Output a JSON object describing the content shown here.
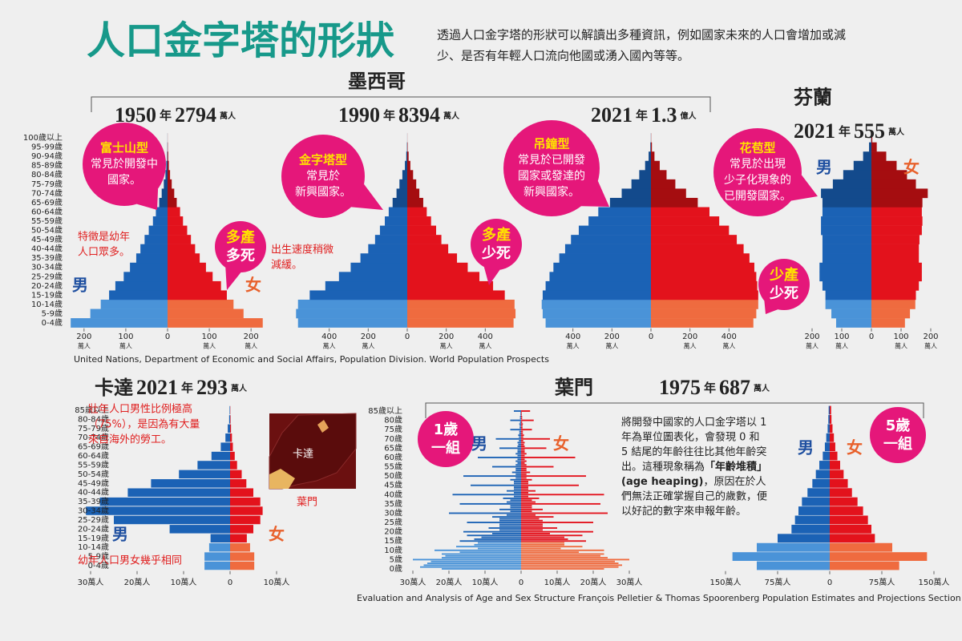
{
  "header": {
    "title": "人口金字塔的形狀",
    "intro": [
      "透過人口金字塔的形狀可以解讀出多種資訊，例如國家未來的人口會增加或減",
      "少、是否有年輕人口流向他國或湧入國內等等。"
    ]
  },
  "groups": [
    {
      "name": "墨西哥"
    },
    {
      "name": "葉門",
      "year": "1975",
      "year_unit": "年",
      "population": 687,
      "population_unit": "萬人"
    }
  ],
  "sources": [
    "United Nations, Department of Economic and Social Affairs, Population Division. World Population Prospects",
    "Evaluation and Analysis of Age and Sex Structure François Pelletier & Thomas Spoorenberg  Population Estimates and Projections Section"
  ],
  "chart_data": [
    {
      "type": "pyramid",
      "year": "1950",
      "year_unit": "年",
      "population": 2794,
      "population_unit": "萬人",
      "categories": [
        "0-4歲",
        "5-9歲",
        "10-14歲",
        "15-19歲",
        "20-24歲",
        "25-29歲",
        "30-34歲",
        "35-39歲",
        "40-44歲",
        "45-49歲",
        "50-54歲",
        "55-59歲",
        "60-64歲",
        "65-69歲",
        "70-74歲",
        "75-79歲",
        "80-84歲",
        "85-89歲",
        "90-94歲",
        "95-99歲",
        "100歲以上"
      ],
      "young_groups": 3,
      "old_from": 13,
      "xlim": [
        -240,
        240
      ],
      "xticks": [
        {
          "value": -200,
          "label": "200"
        },
        {
          "value": -100,
          "label": "100"
        },
        0,
        100,
        200
      ],
      "xunit": "萬人",
      "bubble": {
        "title": "富士山型",
        "lines": [
          "常見於開發中",
          "國家。"
        ]
      },
      "note": [
        "特徵是幼年",
        "人口眾多。"
      ],
      "tag": [
        "多產",
        "多死"
      ],
      "series": [
        {
          "name": "男",
          "side": "left",
          "color": "#1b62b5",
          "young_color": "#4a93d8",
          "old_color": "#134a8c",
          "values": [
            232,
            185,
            160,
            140,
            125,
            105,
            90,
            75,
            65,
            55,
            45,
            35,
            28,
            20,
            14,
            9,
            5,
            3,
            1,
            0.5,
            0.2
          ]
        },
        {
          "name": "女",
          "side": "right",
          "color": "#e3121c",
          "young_color": "#ef6b3f",
          "old_color": "#a50d10",
          "values": [
            228,
            182,
            158,
            142,
            128,
            108,
            92,
            77,
            66,
            56,
            47,
            37,
            30,
            22,
            16,
            10,
            6,
            3,
            1.5,
            0.6,
            0.2
          ]
        }
      ]
    },
    {
      "type": "pyramid",
      "year": "1990",
      "year_unit": "年",
      "population": 8394,
      "population_unit": "萬人",
      "young_groups": 3,
      "old_from": 13,
      "xlim": [
        -600,
        600
      ],
      "xticks": [
        {
          "value": -400,
          "label": "400"
        },
        {
          "value": -200,
          "label": "200"
        },
        0,
        200,
        400
      ],
      "xunit": "萬人",
      "bubble": {
        "title": "金字塔型",
        "lines": [
          "常見於",
          "新興國家。"
        ]
      },
      "note": [
        "出生速度稍微",
        "減緩。"
      ],
      "tag": [
        "多產",
        "少死"
      ],
      "series": [
        {
          "side": "left",
          "color": "#1b62b5",
          "young_color": "#4a93d8",
          "old_color": "#134a8c",
          "values": [
            560,
            570,
            560,
            500,
            420,
            350,
            290,
            240,
            200,
            165,
            140,
            115,
            95,
            75,
            55,
            40,
            25,
            12,
            5,
            1.5,
            0.3
          ]
        },
        {
          "side": "right",
          "color": "#e3121c",
          "young_color": "#ef6b3f",
          "old_color": "#a50d10",
          "values": [
            545,
            555,
            550,
            500,
            440,
            370,
            310,
            255,
            210,
            175,
            148,
            122,
            100,
            82,
            62,
            46,
            30,
            16,
            7,
            2,
            0.5
          ]
        }
      ]
    },
    {
      "type": "pyramid",
      "year": "2021",
      "year_unit": "年",
      "population": 1.3,
      "population_unit": "億人",
      "young_groups": 3,
      "old_from": 13,
      "xlim": [
        -600,
        600
      ],
      "xticks": [
        {
          "value": -400,
          "label": "400"
        },
        {
          "value": -200,
          "label": "200"
        },
        0,
        200,
        400
      ],
      "xunit": "萬人",
      "bubble": {
        "title": "吊鐘型",
        "lines": [
          "常見於已開發",
          "國家或發達的",
          "新興國家。"
        ]
      },
      "tag": [
        "少產",
        "少死"
      ],
      "series": [
        {
          "side": "left",
          "color": "#1b62b5",
          "young_color": "#4a93d8",
          "old_color": "#134a8c",
          "values": [
            540,
            555,
            560,
            555,
            540,
            520,
            500,
            470,
            440,
            410,
            370,
            320,
            270,
            210,
            150,
            100,
            60,
            30,
            12,
            3,
            0.6
          ]
        },
        {
          "side": "right",
          "color": "#e3121c",
          "young_color": "#ef6b3f",
          "old_color": "#a50d10",
          "values": [
            525,
            540,
            550,
            550,
            545,
            540,
            530,
            505,
            475,
            440,
            400,
            350,
            300,
            240,
            180,
            125,
            80,
            45,
            18,
            5,
            1
          ]
        }
      ]
    },
    {
      "type": "pyramid",
      "country": "芬蘭",
      "year": "2021",
      "year_unit": "年",
      "population": 555,
      "population_unit": "萬人",
      "young_groups": 3,
      "old_from": 13,
      "xlim": [
        -200,
        200
      ],
      "xticks": [
        {
          "value": -200,
          "label": "200"
        },
        {
          "value": -100,
          "label": "100"
        },
        0,
        100,
        200
      ],
      "xunit": "萬人",
      "bubble": {
        "title": "花苞型",
        "lines": [
          "常見於出現",
          "少子化現象的",
          "已開發國家。"
        ]
      },
      "series": [
        {
          "name": "男",
          "side": "left",
          "color": "#1b62b5",
          "young_color": "#4a93d8",
          "old_color": "#134a8c",
          "values": [
            119,
            135,
            155,
            155,
            165,
            175,
            175,
            165,
            165,
            165,
            170,
            170,
            165,
            165,
            170,
            130,
            95,
            60,
            28,
            8,
            1
          ]
        },
        {
          "name": "女",
          "side": "right",
          "color": "#e3121c",
          "young_color": "#ef6b3f",
          "old_color": "#a50d10",
          "values": [
            113,
            130,
            148,
            150,
            160,
            170,
            170,
            160,
            160,
            162,
            170,
            172,
            170,
            172,
            190,
            150,
            120,
            85,
            50,
            18,
            3
          ]
        }
      ]
    },
    {
      "type": "pyramid",
      "country": "卡達",
      "year": "2021",
      "year_unit": "年",
      "population": 293,
      "population_unit": "萬人",
      "categories": [
        "0-4歲",
        "5-9歲",
        "10-14歲",
        "15-19歲",
        "20-24歲",
        "25-29歲",
        "30-34歲",
        "35-39歲",
        "40-44歲",
        "45-49歲",
        "50-54歲",
        "55-59歲",
        "60-64歲",
        "65-69歲",
        "70-74歲",
        "75-79歲",
        "80-84歲",
        "85歲以上"
      ],
      "young_groups": 3,
      "xlim": [
        -35,
        15
      ],
      "xticks": [
        {
          "value": -30,
          "label": "30萬人"
        },
        {
          "value": -20,
          "label": "20萬人"
        },
        {
          "value": -10,
          "label": "10萬人"
        },
        0,
        {
          "value": 10,
          "label": "10萬人"
        }
      ],
      "note": [
        "壯年人口男性比例極高",
        "（75%），是因為有大量",
        "來自海外的勞工。"
      ],
      "note2": "幼年人口男女幾乎相同",
      "map_labels": [
        "卡達",
        "葉門"
      ],
      "series": [
        {
          "name": "男",
          "side": "left",
          "color": "#1b62b5",
          "young_color": "#4a93d8",
          "values": [
            5.5,
            5.5,
            4.5,
            4.2,
            13,
            25,
            31,
            28,
            22,
            17,
            11,
            7,
            4,
            2,
            1,
            0.5,
            0.2,
            0.1
          ]
        },
        {
          "name": "女",
          "side": "right",
          "color": "#e3121c",
          "young_color": "#ef6b3f",
          "values": [
            5.2,
            5.2,
            4.3,
            3.6,
            5,
            6.5,
            7,
            6.5,
            5,
            3.5,
            2.5,
            1.5,
            1,
            0.6,
            0.4,
            0.2,
            0.1,
            0.05
          ]
        }
      ]
    },
    {
      "type": "pyramid",
      "categories": [
        "0歲",
        null,
        null,
        null,
        null,
        "5歲",
        null,
        null,
        null,
        null,
        "10歲",
        null,
        null,
        null,
        null,
        "15歲",
        null,
        null,
        null,
        null,
        "20歲",
        null,
        null,
        null,
        null,
        "25歲",
        null,
        null,
        null,
        null,
        "30歲",
        null,
        null,
        null,
        null,
        "35歲",
        null,
        null,
        null,
        null,
        "40歲",
        null,
        null,
        null,
        null,
        "45歲",
        null,
        null,
        null,
        null,
        "50歲",
        null,
        null,
        null,
        null,
        "55歲",
        null,
        null,
        null,
        null,
        "60歲",
        null,
        null,
        null,
        null,
        "65歲",
        null,
        null,
        null,
        null,
        "70歲",
        null,
        null,
        null,
        null,
        "75歲",
        null,
        null,
        null,
        null,
        "80歲",
        null,
        null,
        null,
        null,
        "85歲以上"
      ],
      "young_groups": 15,
      "xlim": [
        -30,
        30
      ],
      "xticks": [
        {
          "value": -30,
          "label": "30萬人"
        },
        {
          "value": -20,
          "label": "20萬人"
        },
        {
          "value": -10,
          "label": "10萬人"
        },
        0,
        {
          "value": 10,
          "label": "10萬人"
        },
        {
          "value": 20,
          "label": "20萬人"
        },
        {
          "value": 30,
          "label": "30萬人"
        }
      ],
      "tag": [
        "1歲",
        "一組"
      ],
      "note": [
        [
          "將開發中國家的人口金字塔以 1"
        ],
        [
          "年為單位圖表化，會發現 0 和"
        ],
        [
          "5 結尾的年齡往往比其他年齡突"
        ],
        [
          "出。這種現象稱為",
          "「年齡堆積」"
        ],
        [
          "",
          "(age heaping)",
          "，原因在於人"
        ],
        [
          "們無法正確掌握自己的歲數，便"
        ],
        [
          "以好記的數字來申報年齡。"
        ]
      ],
      "series": [
        {
          "name": "男",
          "side": "left",
          "color": "#1b62b5",
          "young_color": "#4a93d8",
          "values": [
            22,
            28,
            27,
            26,
            25,
            30,
            22,
            21,
            22,
            17,
            24,
            12,
            18,
            13,
            12,
            17,
            13,
            11,
            15,
            8,
            16,
            6,
            9,
            6,
            6,
            15,
            6,
            6,
            8,
            4,
            20,
            3,
            6,
            3,
            3,
            17,
            4,
            3,
            5,
            2,
            19,
            2,
            4,
            2,
            2,
            14,
            2,
            2,
            3,
            1.5,
            16,
            1.5,
            2.5,
            1.5,
            1.5,
            8,
            1.5,
            1,
            1.5,
            1,
            12,
            1,
            1.5,
            1,
            1,
            6,
            1,
            0.8,
            1,
            0.6,
            7,
            0.6,
            0.8,
            0.5,
            0.5,
            3,
            0.4,
            0.4,
            0.5,
            0.3,
            3,
            0.3,
            0.3,
            0.2,
            0.2,
            2
          ]
        },
        {
          "name": "女",
          "side": "right",
          "color": "#e3121c",
          "young_color": "#ef6b3f",
          "values": [
            23,
            27,
            28,
            27,
            26,
            30,
            24,
            22,
            23,
            16,
            23,
            11,
            17,
            12,
            12,
            18,
            13,
            12,
            17,
            8,
            20,
            6,
            10,
            6,
            6,
            20,
            6,
            5,
            9,
            4,
            24,
            3,
            6,
            3,
            3,
            22,
            4,
            3,
            5,
            2,
            23,
            2,
            4,
            2,
            2,
            16,
            2,
            2,
            3,
            1.5,
            18,
            1.5,
            2.5,
            1.5,
            1.5,
            9,
            1.5,
            1,
            1.5,
            1,
            15,
            1,
            1.5,
            1,
            1,
            7,
            1,
            0.8,
            1,
            0.6,
            8,
            0.6,
            0.8,
            0.5,
            0.5,
            3,
            0.4,
            0.4,
            0.5,
            0.3,
            3.5,
            0.3,
            0.3,
            0.2,
            0.2,
            2.5
          ]
        }
      ]
    },
    {
      "type": "pyramid",
      "young_groups": 3,
      "xlim": [
        -150,
        150
      ],
      "xticks": [
        {
          "value": -150,
          "label": "150萬人"
        },
        {
          "value": -75,
          "label": "75萬人"
        },
        0,
        {
          "value": 75,
          "label": "75萬人"
        },
        {
          "value": 150,
          "label": "150萬人"
        }
      ],
      "tag": [
        "5歲",
        "一組"
      ],
      "series": [
        {
          "name": "男",
          "side": "left",
          "color": "#1b62b5",
          "young_color": "#4a93d8",
          "values": [
            105,
            140,
            105,
            75,
            55,
            50,
            45,
            40,
            32,
            25,
            20,
            15,
            10,
            7,
            5,
            3,
            2,
            1.5
          ]
        },
        {
          "name": "女",
          "side": "right",
          "color": "#e3121c",
          "young_color": "#ef6b3f",
          "values": [
            100,
            140,
            90,
            65,
            60,
            55,
            48,
            40,
            32,
            26,
            20,
            15,
            11,
            8,
            6,
            4,
            2.5,
            2
          ]
        }
      ]
    }
  ]
}
